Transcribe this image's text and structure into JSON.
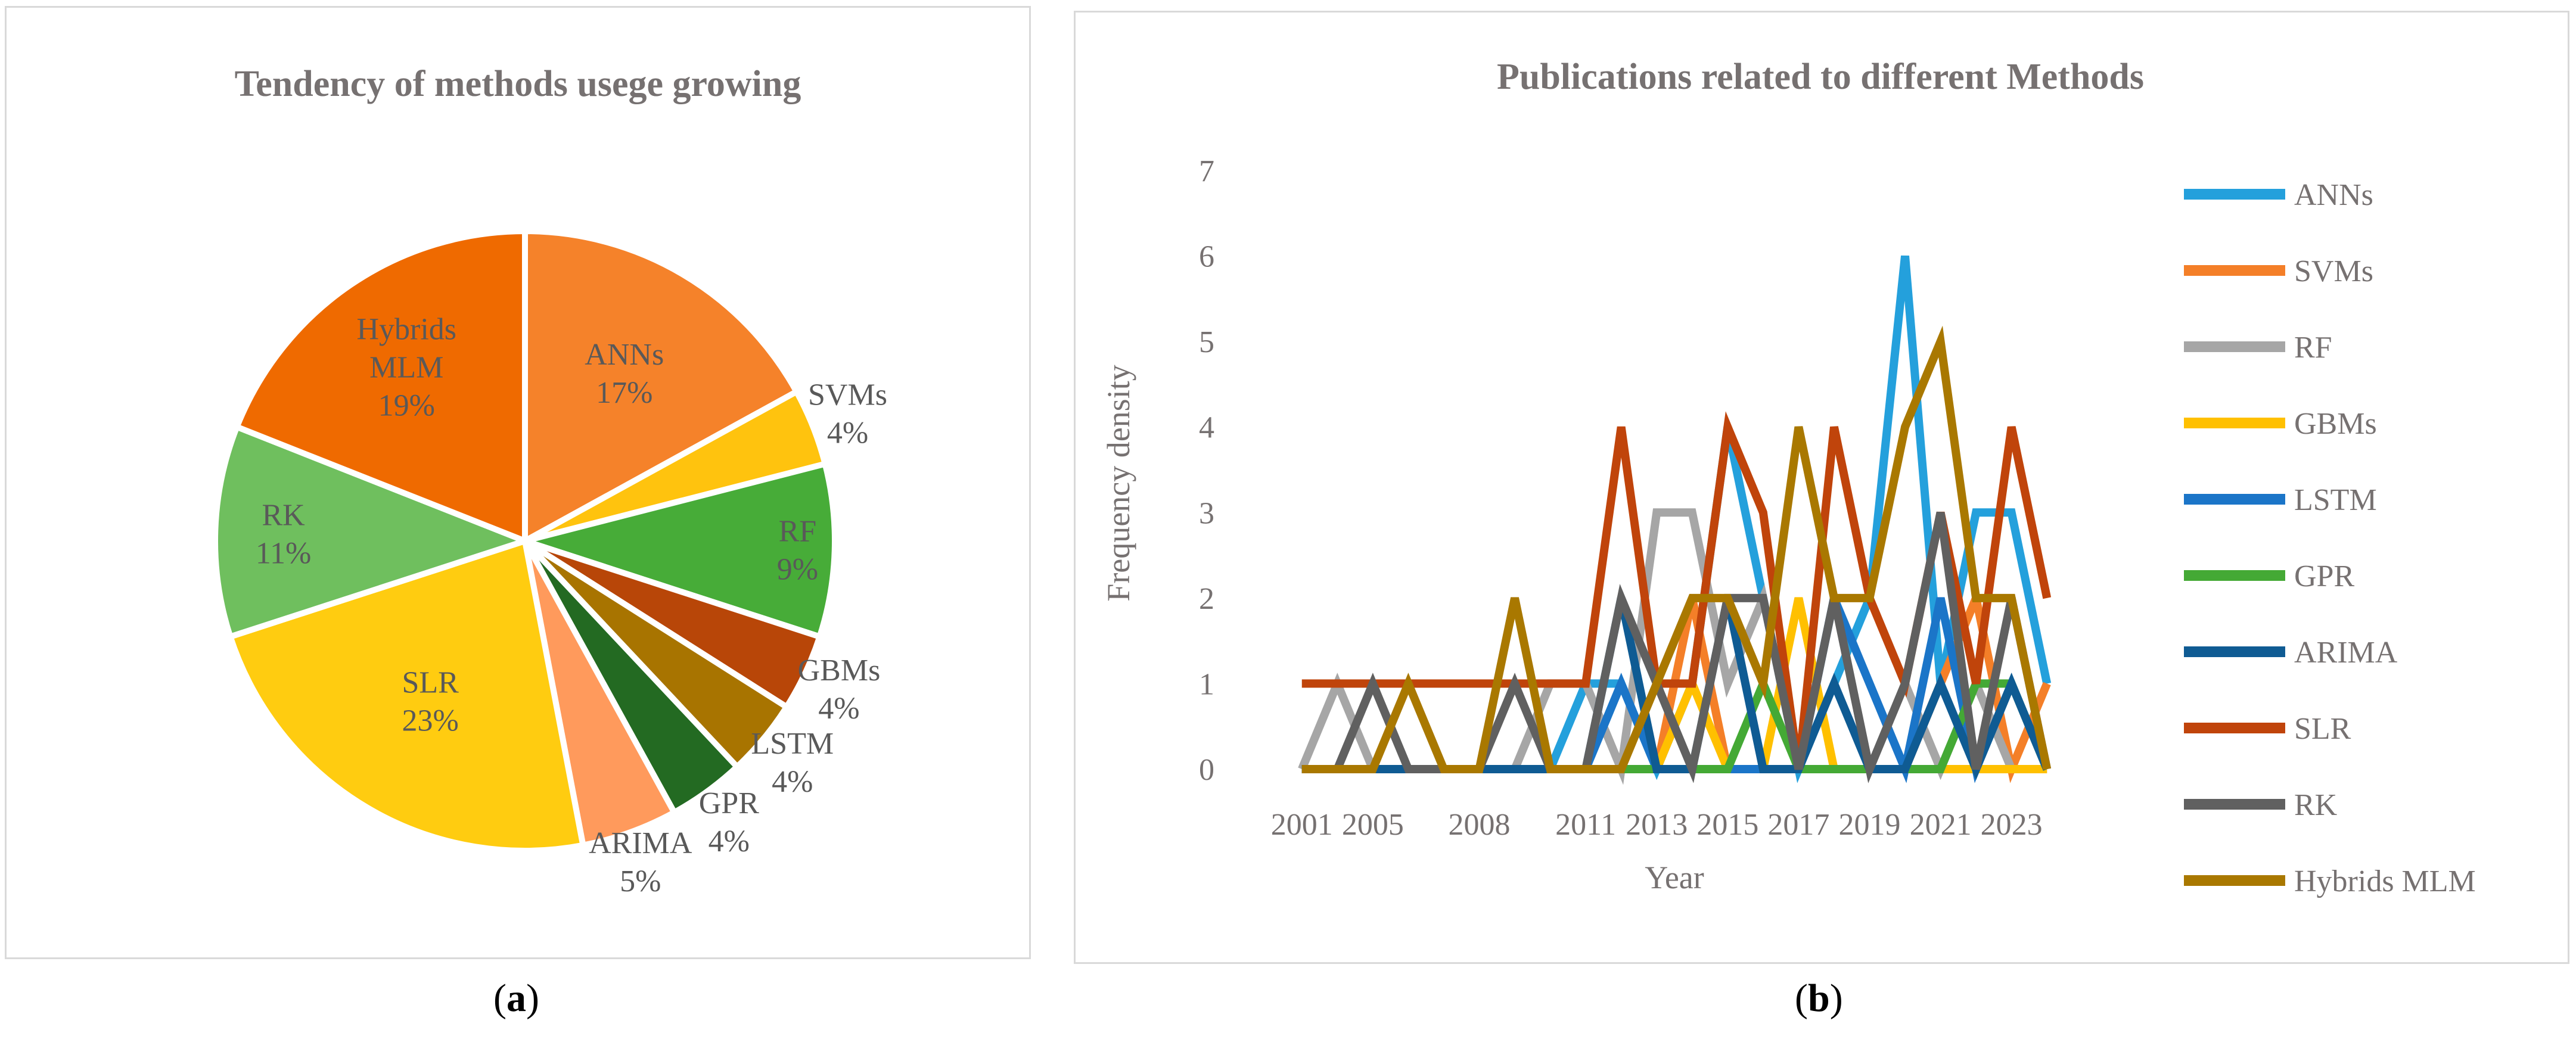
{
  "captions": {
    "a": {
      "open": "(",
      "letter": "a",
      "close": ")"
    },
    "b": {
      "open": "(",
      "letter": "b",
      "close": ")"
    }
  },
  "chart_data": [
    {
      "type": "pie",
      "title": "Tendency of methods usege  growing",
      "slices": [
        {
          "label": "ANNs",
          "value": 17,
          "pct": "17%",
          "color": "#f5822a"
        },
        {
          "label": "SVMs",
          "value": 4,
          "pct": "4%",
          "color": "#ffc30e"
        },
        {
          "label": "RF",
          "value": 9,
          "pct": "9%",
          "color": "#47ac38"
        },
        {
          "label": "GBMs",
          "value": 4,
          "pct": "4%",
          "color": "#b84608"
        },
        {
          "label": "LSTM",
          "value": 4,
          "pct": "4%",
          "color": "#a87400"
        },
        {
          "label": "GPR",
          "value": 4,
          "pct": "4%",
          "color": "#236a22"
        },
        {
          "label": "ARIMA",
          "value": 5,
          "pct": "5%",
          "color": "#ff9a5c"
        },
        {
          "label": "SLR",
          "value": 23,
          "pct": "23%",
          "color": "#ffcc10"
        },
        {
          "label": "RK",
          "value": 11,
          "pct": "11%",
          "color": "#6fbf5e"
        },
        {
          "label": "Hybrids MLM",
          "label_lines": [
            "Hybrids",
            "MLM"
          ],
          "value": 19,
          "pct": "19%",
          "color": "#ef6a00"
        }
      ]
    },
    {
      "type": "line",
      "title": "Publications related to different Methods",
      "xlabel": "Year",
      "ylabel": "Frequency density",
      "ylim": [
        0,
        7
      ],
      "yticks": [
        0,
        1,
        2,
        3,
        4,
        5,
        6,
        7
      ],
      "x": [
        "2001",
        "2003",
        "2005",
        "2006",
        "2007",
        "2008",
        "2009",
        "2010",
        "2011",
        "2012",
        "2013",
        "2014",
        "2015",
        "2016",
        "2017",
        "2018",
        "2019",
        "2020",
        "2021",
        "2022",
        "2023",
        "2024"
      ],
      "xtick_labels": [
        "2001",
        "2005",
        "2008",
        "2011",
        "2013",
        "2015",
        "2017",
        "2019",
        "2021",
        "2023"
      ],
      "series": [
        {
          "name": "ANNs",
          "color": "#24a0dc",
          "values": [
            0,
            0,
            0,
            0,
            0,
            0,
            0,
            0,
            1,
            1,
            0,
            1,
            4,
            2,
            0,
            1,
            2,
            6,
            1,
            3,
            3,
            1
          ]
        },
        {
          "name": "SVMs",
          "color": "#f47f28",
          "values": [
            0,
            0,
            0,
            0,
            0,
            0,
            0,
            0,
            0,
            0,
            0,
            2,
            0,
            0,
            0,
            0,
            0,
            0,
            1,
            2,
            0,
            1
          ]
        },
        {
          "name": "RF",
          "color": "#a6a6a6",
          "values": [
            0,
            1,
            0,
            0,
            0,
            0,
            0,
            1,
            1,
            0,
            3,
            3,
            1,
            2,
            0,
            2,
            0,
            1,
            0,
            1,
            0,
            0
          ]
        },
        {
          "name": "GBMs",
          "color": "#ffc000",
          "values": [
            0,
            0,
            0,
            0,
            0,
            0,
            0,
            0,
            0,
            0,
            0,
            1,
            0,
            0,
            2,
            0,
            0,
            0,
            0,
            0,
            0,
            0
          ]
        },
        {
          "name": "LSTM",
          "color": "#1b75c8",
          "values": [
            0,
            0,
            0,
            0,
            0,
            0,
            0,
            0,
            0,
            1,
            0,
            0,
            0,
            0,
            0,
            2,
            1,
            0,
            2,
            0,
            1,
            0
          ]
        },
        {
          "name": "GPR",
          "color": "#44a935",
          "values": [
            0,
            0,
            0,
            0,
            0,
            0,
            0,
            0,
            0,
            0,
            0,
            0,
            0,
            1,
            0,
            0,
            0,
            0,
            0,
            1,
            1,
            0
          ]
        },
        {
          "name": "ARIMA",
          "color": "#0f5b93",
          "values": [
            0,
            0,
            0,
            0,
            0,
            0,
            0,
            0,
            0,
            2,
            0,
            0,
            2,
            0,
            0,
            1,
            0,
            0,
            1,
            0,
            1,
            0
          ]
        },
        {
          "name": "SLR",
          "color": "#c0440b",
          "values": [
            1,
            1,
            1,
            1,
            1,
            1,
            1,
            1,
            1,
            4,
            1,
            1,
            4,
            3,
            0,
            4,
            2,
            1,
            3,
            1,
            4,
            2
          ]
        },
        {
          "name": "RK",
          "color": "#606060",
          "values": [
            0,
            0,
            1,
            0,
            0,
            0,
            1,
            0,
            0,
            2,
            1,
            0,
            2,
            2,
            0,
            2,
            0,
            1,
            3,
            0,
            2,
            0
          ]
        },
        {
          "name": "Hybrids MLM",
          "color": "#a97800",
          "values": [
            0,
            0,
            0,
            1,
            0,
            0,
            2,
            0,
            0,
            0,
            1,
            2,
            2,
            1,
            4,
            2,
            2,
            4,
            5,
            2,
            2,
            0
          ]
        }
      ]
    }
  ]
}
